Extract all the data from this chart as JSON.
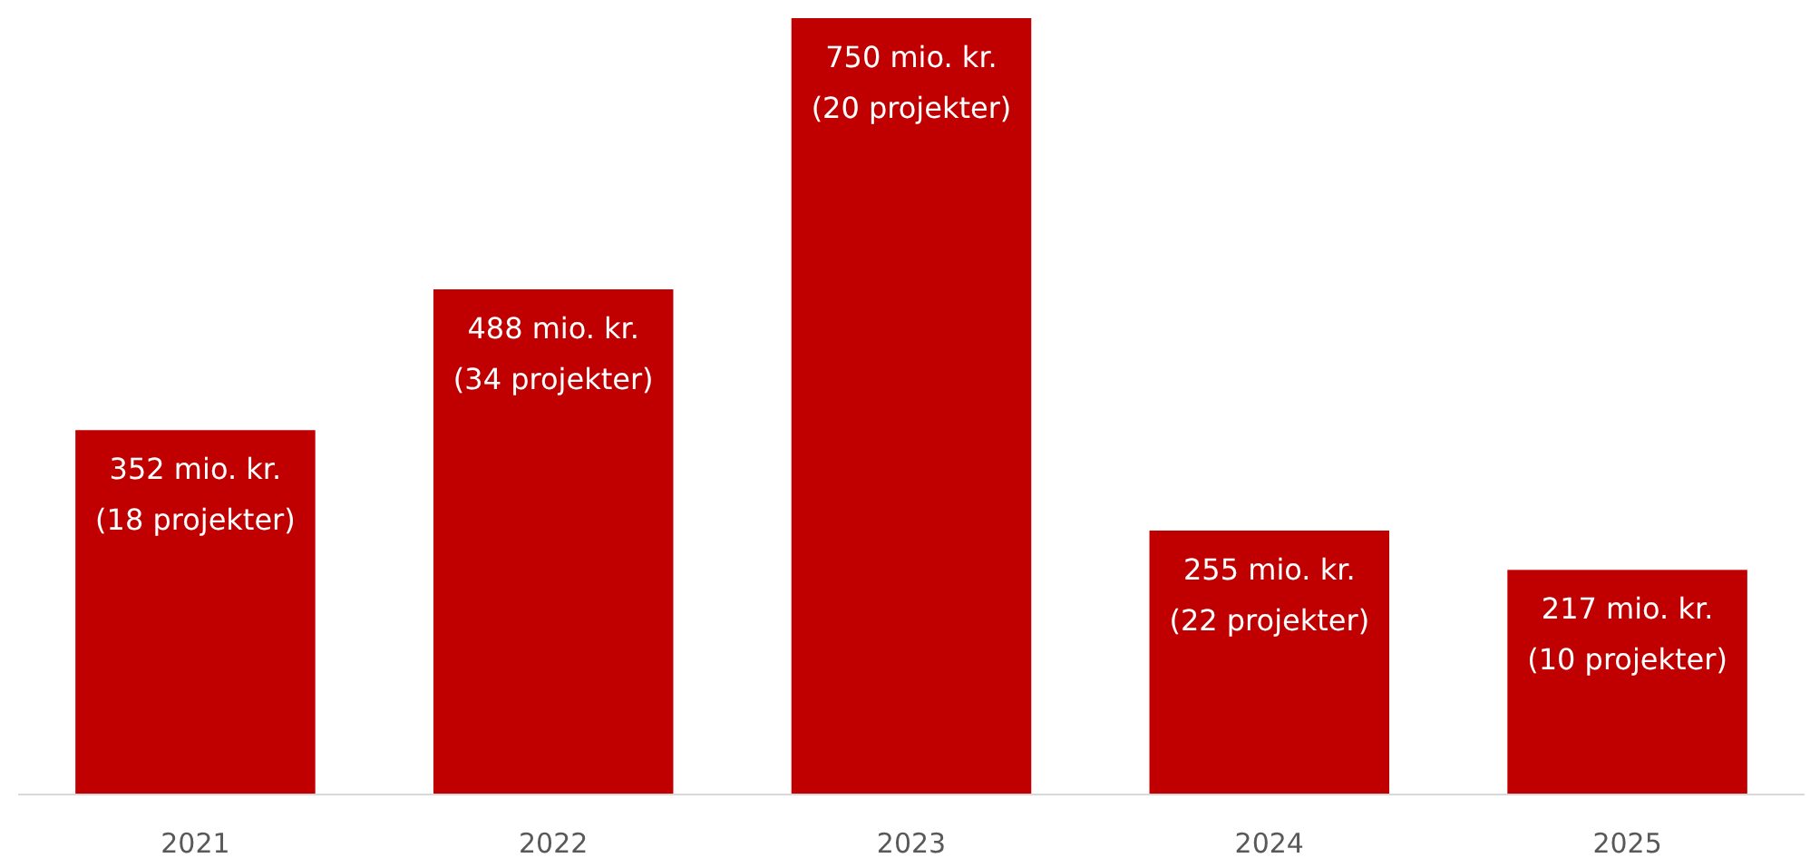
{
  "chart_data": {
    "type": "bar",
    "categories": [
      "2021",
      "2022",
      "2023",
      "2024",
      "2025"
    ],
    "series": [
      {
        "color": "#c00000",
        "values": [
          352,
          488,
          750,
          255,
          217
        ],
        "value_labels": [
          "352 mio. kr.\n(18 projekter)",
          "488 mio. kr.\n(34 projekter)",
          "750 mio. kr.\n(20 projekter)",
          "255 mio. kr.\n(22 projekter)",
          "217 mio. kr.\n(10 projekter)"
        ]
      }
    ],
    "orientation": "vertical"
  }
}
